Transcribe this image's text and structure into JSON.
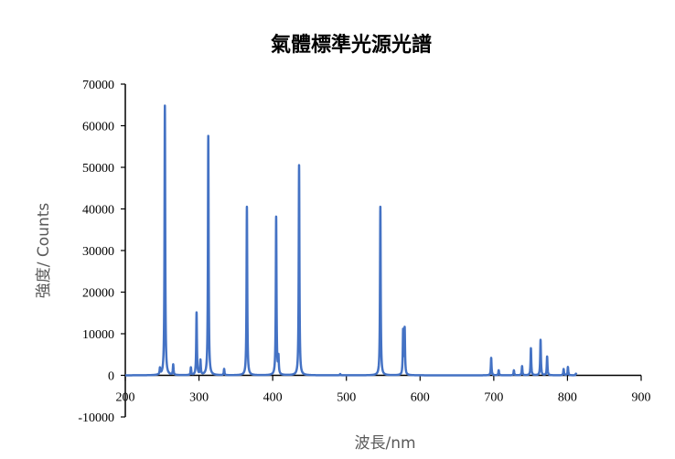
{
  "chart_data": {
    "type": "line",
    "title": "氣體標準光源光譜",
    "xlabel": "波長/nm",
    "ylabel": "強度/ Counts",
    "xlim": [
      200,
      900
    ],
    "ylim": [
      -10000,
      70000
    ],
    "x_ticks": [
      "200",
      "300",
      "400",
      "500",
      "600",
      "700",
      "800",
      "900"
    ],
    "y_ticks": [
      "-10000",
      "0",
      "10000",
      "20000",
      "30000",
      "40000",
      "50000",
      "60000",
      "70000"
    ],
    "grid": false,
    "legend": "none",
    "line_color": "#4472C4",
    "peaks": [
      {
        "x": 247,
        "y": 1500
      },
      {
        "x": 253.7,
        "y": 64800
      },
      {
        "x": 265,
        "y": 2500
      },
      {
        "x": 289,
        "y": 1800
      },
      {
        "x": 296.7,
        "y": 15000
      },
      {
        "x": 302,
        "y": 3500
      },
      {
        "x": 312.6,
        "y": 57500
      },
      {
        "x": 334.1,
        "y": 1500
      },
      {
        "x": 365.0,
        "y": 40500
      },
      {
        "x": 404.7,
        "y": 38000
      },
      {
        "x": 407.8,
        "y": 4000
      },
      {
        "x": 435.8,
        "y": 50500
      },
      {
        "x": 491.6,
        "y": 300
      },
      {
        "x": 546.1,
        "y": 40500
      },
      {
        "x": 577.0,
        "y": 10500
      },
      {
        "x": 579.1,
        "y": 11000
      },
      {
        "x": 696.5,
        "y": 4200
      },
      {
        "x": 706.7,
        "y": 1200
      },
      {
        "x": 727.3,
        "y": 1200
      },
      {
        "x": 738.4,
        "y": 2200
      },
      {
        "x": 750.4,
        "y": 6500
      },
      {
        "x": 763.5,
        "y": 8500
      },
      {
        "x": 772.4,
        "y": 4500
      },
      {
        "x": 794.8,
        "y": 1500
      },
      {
        "x": 800.6,
        "y": 2000
      },
      {
        "x": 811.5,
        "y": 400
      }
    ]
  }
}
